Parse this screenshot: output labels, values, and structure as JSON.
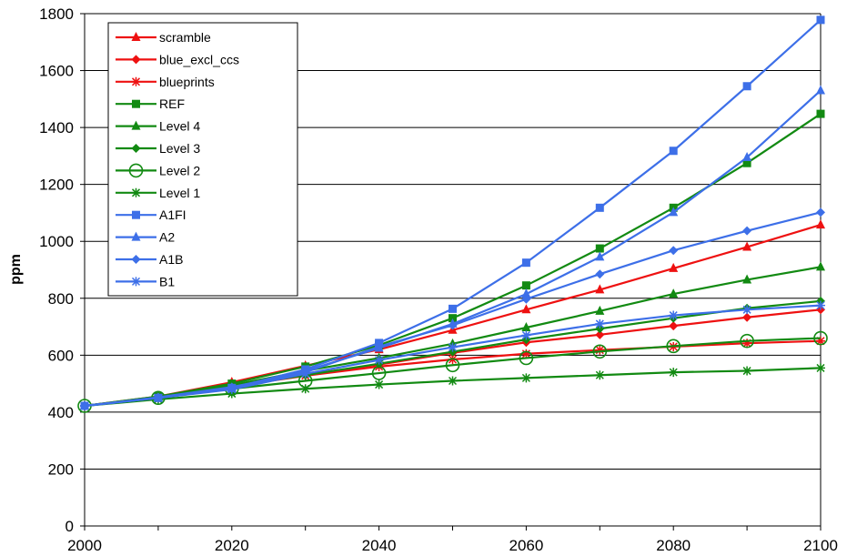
{
  "chart_data": {
    "type": "line",
    "title": "",
    "xlabel": "",
    "ylabel": "ppm",
    "xlim": [
      2000,
      2100
    ],
    "ylim": [
      0,
      1800
    ],
    "x_ticks": [
      "2000",
      "2020",
      "2040",
      "2060",
      "2080",
      "2100"
    ],
    "y_ticks": [
      "0",
      "200",
      "400",
      "600",
      "800",
      "1000",
      "1200",
      "1400",
      "1600",
      "1800"
    ],
    "grid": "horizontal",
    "legend_position": "top-left",
    "x": [
      2000,
      2010,
      2020,
      2030,
      2040,
      2050,
      2060,
      2070,
      2080,
      2090,
      2100
    ],
    "series": [
      {
        "name": "scramble",
        "color": "#ee1111",
        "marker": "triangle",
        "values": [
          422,
          455,
          505,
          563,
          620,
          688,
          760,
          830,
          905,
          980,
          1058
        ]
      },
      {
        "name": "blue_excl_ccs",
        "color": "#ee1111",
        "marker": "diamond",
        "values": [
          422,
          452,
          492,
          532,
          567,
          608,
          645,
          672,
          703,
          733,
          760
        ]
      },
      {
        "name": "blueprints",
        "color": "#ee1111",
        "marker": "star",
        "values": [
          422,
          450,
          490,
          528,
          560,
          585,
          605,
          618,
          630,
          642,
          650
        ]
      },
      {
        "name": "REF",
        "color": "#128a12",
        "marker": "square",
        "values": [
          422,
          455,
          500,
          560,
          635,
          730,
          845,
          975,
          1118,
          1275,
          1448
        ]
      },
      {
        "name": "Level 4",
        "color": "#128a12",
        "marker": "triangle",
        "values": [
          422,
          453,
          495,
          545,
          590,
          640,
          697,
          755,
          815,
          865,
          910
        ]
      },
      {
        "name": "Level 3",
        "color": "#128a12",
        "marker": "diamond",
        "values": [
          422,
          452,
          490,
          530,
          570,
          612,
          655,
          693,
          730,
          765,
          790
        ]
      },
      {
        "name": "Level 2",
        "color": "#128a12",
        "marker": "circle",
        "values": [
          422,
          450,
          482,
          510,
          537,
          565,
          590,
          613,
          632,
          650,
          660
        ]
      },
      {
        "name": "Level 1",
        "color": "#128a12",
        "marker": "star",
        "values": [
          422,
          445,
          465,
          482,
          497,
          510,
          520,
          530,
          540,
          545,
          555
        ]
      },
      {
        "name": "A1FI",
        "color": "#3d6fe8",
        "marker": "square",
        "values": [
          422,
          450,
          485,
          550,
          643,
          763,
          925,
          1118,
          1318,
          1545,
          1778
        ]
      },
      {
        "name": "A2",
        "color": "#3d6fe8",
        "marker": "triangle",
        "values": [
          422,
          450,
          483,
          545,
          625,
          710,
          815,
          945,
          1102,
          1295,
          1530
        ]
      },
      {
        "name": "A1B",
        "color": "#3d6fe8",
        "marker": "diamond",
        "values": [
          422,
          452,
          488,
          540,
          630,
          705,
          797,
          885,
          968,
          1037,
          1102
        ]
      },
      {
        "name": "B1",
        "color": "#3d6fe8",
        "marker": "star",
        "values": [
          422,
          450,
          480,
          535,
          583,
          628,
          670,
          710,
          740,
          760,
          775
        ]
      }
    ]
  }
}
